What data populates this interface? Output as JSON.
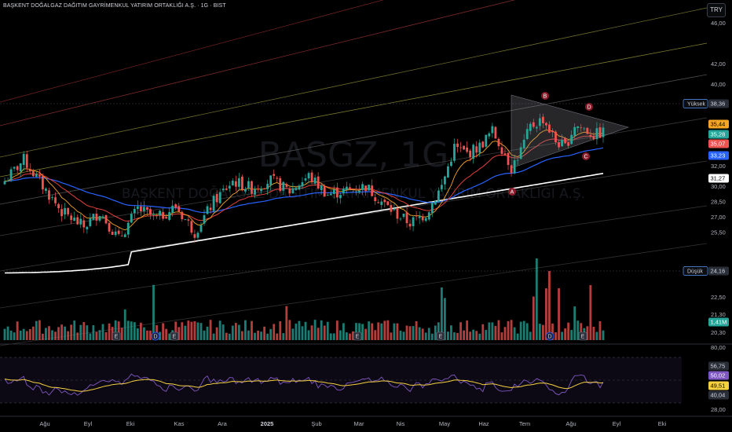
{
  "header": {
    "title": "BAŞKENT DOĞALGAZ DAĞITIM GAYRİMENKUL YATIRIM ORTAKLIĞI A.Ş. · 1G · BIST",
    "currency": "TRY"
  },
  "watermark": {
    "symbol": "BASGZ, 1G",
    "name": "BAŞKENT DOĞALGAZ DAĞITIM GAYRİMENKUL YATIRIM ORTAKLIĞI A.Ş."
  },
  "colors": {
    "up": "#26a69a",
    "down": "#ef5350",
    "background": "#000000",
    "ema_short": "#f5a623",
    "ema_mid": "#e0403a",
    "ema_long": "#2962ff",
    "ema_200": "#ffffff",
    "rsi": "#7e57c2",
    "rsi_ma": "#f5d142",
    "triangle": "#9598a1"
  },
  "chart_data": [
    {
      "type": "candlestick",
      "title": "BASGZ, 1G",
      "x_ticks": [
        "Ağu",
        "Eyl",
        "Eki",
        "Kas",
        "Ara",
        "2025",
        "Şub",
        "Mar",
        "Nis",
        "May",
        "Haz",
        "Tem",
        "Ağu",
        "Eyl",
        "Eki"
      ],
      "y_ticks": [
        20.3,
        21.3,
        22.5,
        24.16,
        25.5,
        27.0,
        28.5,
        30.0,
        31.27,
        32.0,
        33.23,
        35.07,
        35.28,
        35.44,
        38.36,
        40.0,
        42.0,
        46.0
      ],
      "ylim": [
        19.9,
        48.8
      ],
      "price_labels": [
        {
          "label": "Yüksek",
          "value": "38,36"
        },
        {
          "value": "35,44"
        },
        {
          "value": "35,28"
        },
        {
          "value": "35,07"
        },
        {
          "value": "33,23"
        },
        {
          "value": "31,27"
        },
        {
          "label": "Düşük",
          "value": "24,16"
        },
        {
          "value": "1,41M"
        }
      ],
      "moving_averages": [
        "EMA short",
        "EMA mid",
        "EMA long",
        "EMA 200"
      ],
      "pattern": {
        "type": "triangle",
        "points": [
          "A",
          "B",
          "C",
          "D"
        ]
      },
      "event_markers": [
        "E",
        "D",
        "E",
        "E",
        "E",
        "D",
        "E"
      ]
    },
    {
      "type": "line",
      "title": "RSI",
      "ylim": [
        28,
        80
      ],
      "y_ticks": [
        28.0,
        40.04,
        49.51,
        50.02,
        56.75,
        80.0
      ],
      "series": [
        {
          "values": []
        },
        {
          "values": []
        }
      ],
      "bands": [
        30,
        70
      ]
    }
  ],
  "price_axis": [
    "46,00",
    "42,00",
    "40,00",
    "32,00",
    "30,00",
    "28,50",
    "27,00",
    "25,50",
    "22,50",
    "21,30",
    "20,30"
  ],
  "rsi_axis": [
    "80,00",
    "28,00"
  ],
  "rsi_labels": [
    "56,75",
    "50,02",
    "49,51",
    "40,04"
  ]
}
